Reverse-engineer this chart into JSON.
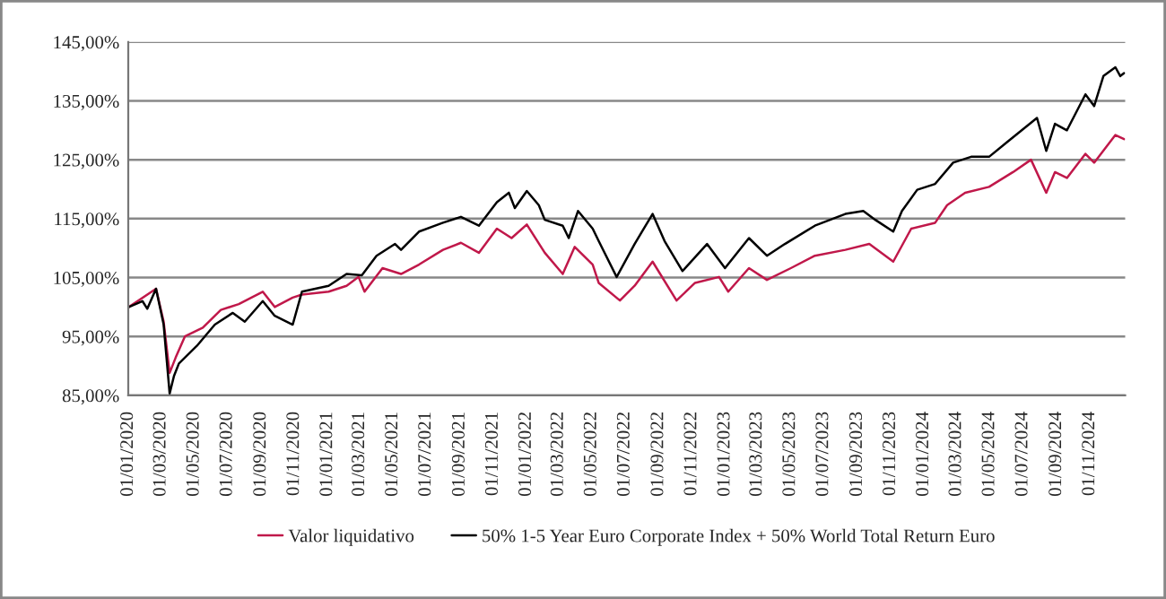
{
  "chart_data": {
    "type": "line",
    "ylim": [
      85,
      145
    ],
    "yticks": [
      {
        "value": 85,
        "label": "85,00%"
      },
      {
        "value": 95,
        "label": "95,00%"
      },
      {
        "value": 105,
        "label": "105,00%"
      },
      {
        "value": 115,
        "label": "115,00%"
      },
      {
        "value": 125,
        "label": "125,00%"
      },
      {
        "value": 135,
        "label": "135,00%"
      },
      {
        "value": 145,
        "label": "145,00%"
      }
    ],
    "xlim": [
      "2020-01-01",
      "2025-01-05"
    ],
    "xticks": [
      {
        "value": "2020-01-01",
        "label": "01/01/2020"
      },
      {
        "value": "2020-03-01",
        "label": "01/03/2020"
      },
      {
        "value": "2020-05-01",
        "label": "01/05/2020"
      },
      {
        "value": "2020-07-01",
        "label": "01/07/2020"
      },
      {
        "value": "2020-09-01",
        "label": "01/09/2020"
      },
      {
        "value": "2020-11-01",
        "label": "01/11/2020"
      },
      {
        "value": "2021-01-01",
        "label": "01/01/2021"
      },
      {
        "value": "2021-03-01",
        "label": "01/03/2021"
      },
      {
        "value": "2021-05-01",
        "label": "01/05/2021"
      },
      {
        "value": "2021-07-01",
        "label": "01/07/2021"
      },
      {
        "value": "2021-09-01",
        "label": "01/09/2021"
      },
      {
        "value": "2021-11-01",
        "label": "01/11/2021"
      },
      {
        "value": "2022-01-01",
        "label": "01/01/2022"
      },
      {
        "value": "2022-03-01",
        "label": "01/03/2022"
      },
      {
        "value": "2022-05-01",
        "label": "01/05/2022"
      },
      {
        "value": "2022-07-01",
        "label": "01/07/2022"
      },
      {
        "value": "2022-09-01",
        "label": "01/09/2022"
      },
      {
        "value": "2022-11-01",
        "label": "01/11/2022"
      },
      {
        "value": "2023-01-01",
        "label": "01/01/2023"
      },
      {
        "value": "2023-03-01",
        "label": "01/03/2023"
      },
      {
        "value": "2023-05-01",
        "label": "01/05/2023"
      },
      {
        "value": "2023-07-01",
        "label": "01/07/2023"
      },
      {
        "value": "2023-09-01",
        "label": "01/09/2023"
      },
      {
        "value": "2023-11-01",
        "label": "01/11/2023"
      },
      {
        "value": "2024-01-01",
        "label": "01/01/2024"
      },
      {
        "value": "2024-03-01",
        "label": "01/03/2024"
      },
      {
        "value": "2024-05-01",
        "label": "01/05/2024"
      },
      {
        "value": "2024-07-01",
        "label": "01/07/2024"
      },
      {
        "value": "2024-09-01",
        "label": "01/09/2024"
      },
      {
        "value": "2024-11-01",
        "label": "01/11/2024"
      }
    ],
    "grid": "y",
    "legend": "bottom",
    "series": [
      {
        "name": "Valor liquidativo",
        "color": "#c0184a",
        "x": [
          "2020-01-02",
          "2020-02-21",
          "2020-03-06",
          "2020-03-17",
          "2020-03-28",
          "2020-04-14",
          "2020-05-17",
          "2020-06-19",
          "2020-07-22",
          "2020-09-04",
          "2020-09-26",
          "2020-10-29",
          "2020-11-15",
          "2021-01-03",
          "2021-02-05",
          "2021-02-27",
          "2021-03-10",
          "2021-04-12",
          "2021-05-16",
          "2021-06-18",
          "2021-08-01",
          "2021-09-03",
          "2021-10-06",
          "2021-11-08",
          "2021-12-05",
          "2022-01-02",
          "2022-02-04",
          "2022-03-09",
          "2022-03-31",
          "2022-05-03",
          "2022-05-14",
          "2022-06-22",
          "2022-07-19",
          "2022-08-21",
          "2022-10-04",
          "2022-11-07",
          "2022-12-21",
          "2023-01-07",
          "2023-02-14",
          "2023-03-19",
          "2023-05-02",
          "2023-06-15",
          "2023-08-10",
          "2023-09-23",
          "2023-11-06",
          "2023-12-09",
          "2024-01-22",
          "2024-02-13",
          "2024-03-17",
          "2024-04-30",
          "2024-06-13",
          "2024-07-16",
          "2024-08-13",
          "2024-08-29",
          "2024-09-20",
          "2024-10-24",
          "2024-11-09",
          "2024-12-18",
          "2025-01-03"
        ],
        "values": [
          100,
          103.1,
          97.5,
          88.8,
          91.4,
          95,
          96.5,
          99.5,
          100.5,
          102.6,
          100,
          101.6,
          102.1,
          102.6,
          103.6,
          105.1,
          102.6,
          106.6,
          105.6,
          107.2,
          109.7,
          110.9,
          109.2,
          113.3,
          111.7,
          114,
          109.2,
          105.6,
          110.2,
          107.2,
          104.1,
          101.1,
          103.6,
          107.7,
          101.1,
          104.1,
          105.1,
          102.6,
          106.6,
          104.6,
          106.6,
          108.7,
          109.7,
          110.7,
          107.7,
          113.3,
          114.3,
          117.3,
          119.4,
          120.4,
          122.9,
          125,
          119.4,
          122.9,
          121.9,
          126,
          124.5,
          129.2,
          128.5
        ]
      },
      {
        "name": "50% 1-5 Year Euro Corporate Index + 50% World Total Return Euro",
        "color": "#000000",
        "x": [
          "2020-01-02",
          "2020-01-27",
          "2020-02-05",
          "2020-02-21",
          "2020-03-06",
          "2020-03-17",
          "2020-03-25",
          "2020-04-03",
          "2020-05-06",
          "2020-06-08",
          "2020-07-11",
          "2020-08-02",
          "2020-09-04",
          "2020-09-26",
          "2020-10-29",
          "2020-11-15",
          "2021-01-03",
          "2021-02-05",
          "2021-03-05",
          "2021-04-01",
          "2021-05-05",
          "2021-05-16",
          "2021-06-18",
          "2021-08-01",
          "2021-09-03",
          "2021-10-06",
          "2021-11-08",
          "2021-11-30",
          "2021-12-11",
          "2022-01-02",
          "2022-01-24",
          "2022-02-04",
          "2022-03-09",
          "2022-03-20",
          "2022-04-06",
          "2022-05-03",
          "2022-05-14",
          "2022-06-16",
          "2022-07-19",
          "2022-08-21",
          "2022-09-12",
          "2022-10-15",
          "2022-11-29",
          "2023-01-01",
          "2023-02-14",
          "2023-03-19",
          "2023-04-21",
          "2023-06-15",
          "2023-08-10",
          "2023-09-12",
          "2023-10-04",
          "2023-11-06",
          "2023-11-22",
          "2023-12-20",
          "2024-01-22",
          "2024-02-24",
          "2024-03-28",
          "2024-04-30",
          "2024-06-02",
          "2024-07-27",
          "2024-08-13",
          "2024-08-29",
          "2024-09-20",
          "2024-10-24",
          "2024-11-09",
          "2024-11-26",
          "2024-12-18",
          "2024-12-27",
          "2025-01-03"
        ],
        "values": [
          100,
          101,
          99.7,
          103.1,
          97,
          85.3,
          88.3,
          90.4,
          93.4,
          97,
          99,
          97.5,
          101,
          98.5,
          97,
          102.6,
          103.6,
          105.6,
          105.4,
          108.7,
          110.7,
          109.7,
          112.8,
          114.3,
          115.3,
          113.8,
          117.8,
          119.4,
          116.8,
          119.7,
          117.3,
          114.8,
          113.8,
          111.7,
          116.3,
          113.3,
          111.2,
          105.1,
          110.7,
          115.8,
          111.2,
          106.1,
          110.7,
          106.6,
          111.7,
          108.7,
          110.7,
          113.8,
          115.8,
          116.3,
          114.8,
          112.8,
          116.3,
          119.9,
          120.9,
          124.5,
          125.5,
          125.5,
          128,
          132.1,
          126.5,
          131.1,
          130,
          136.1,
          134.1,
          139.2,
          140.7,
          139.2,
          139.7
        ]
      }
    ]
  }
}
